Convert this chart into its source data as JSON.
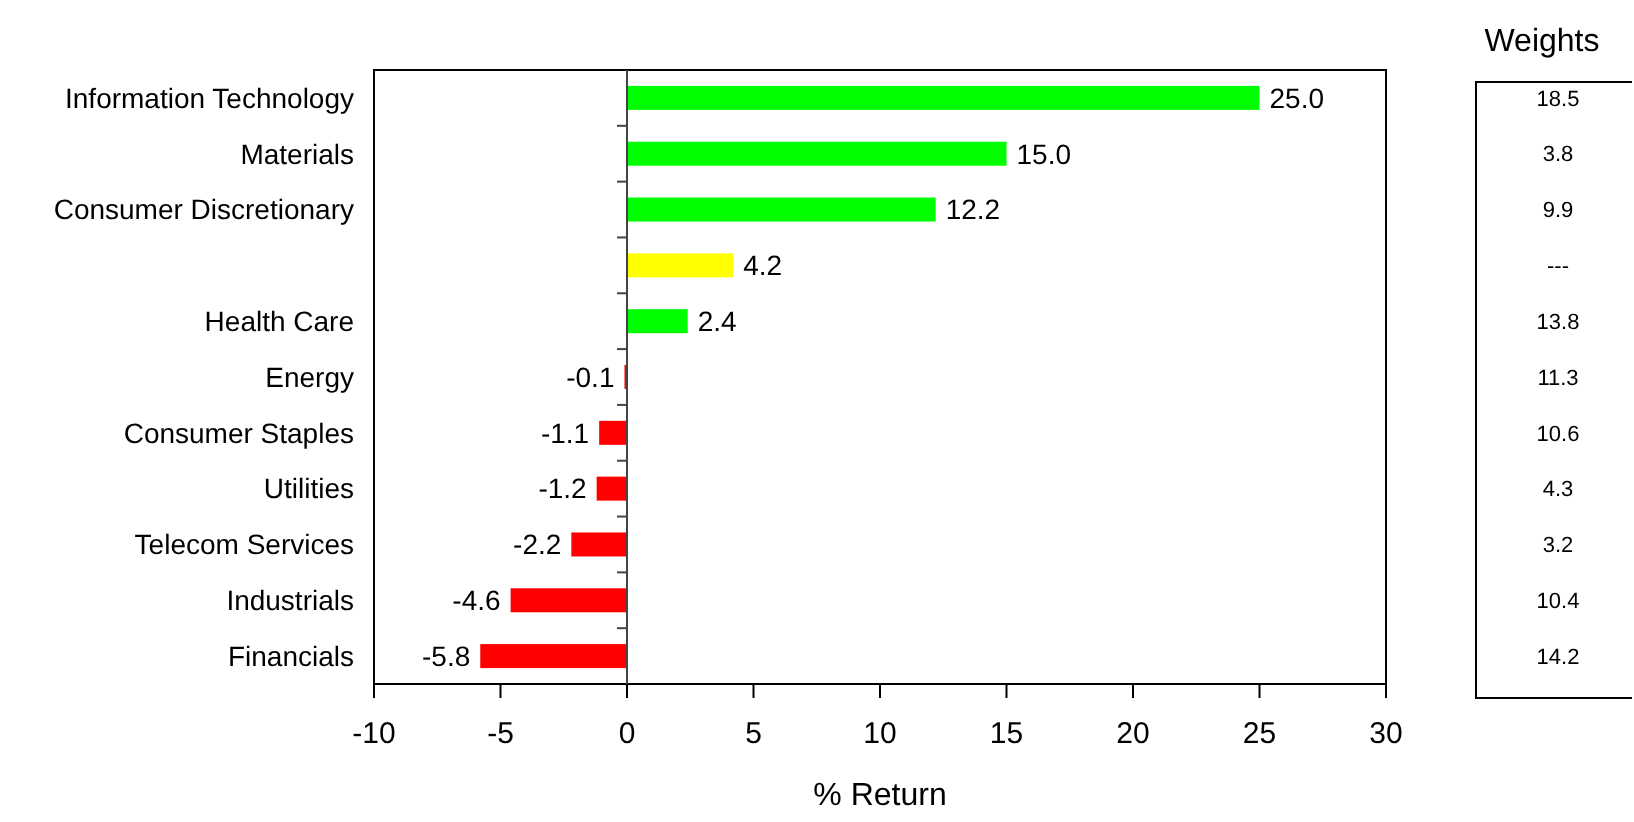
{
  "chart_data": [
    {
      "type": "bar",
      "orientation": "horizontal",
      "categories": [
        "Information Technology",
        "Materials",
        "Consumer Discretionary",
        null,
        "Health Care",
        "Energy",
        "Consumer Staples",
        "Utilities",
        "Telecom Services",
        "Industrials",
        "Financials"
      ],
      "values": [
        25.0,
        15.0,
        12.2,
        4.2,
        2.4,
        -0.1,
        -1.1,
        -1.2,
        -2.2,
        -4.6,
        -5.8
      ],
      "colors": [
        "#00ff00",
        "#00ff00",
        "#00ff00",
        "#ffff00",
        "#00ff00",
        "#ff0000",
        "#ff0000",
        "#ff0000",
        "#ff0000",
        "#ff0000",
        "#ff0000"
      ],
      "value_labels": [
        "25.0",
        "15.0",
        "12.2",
        "4.2",
        "2.4",
        "-0.1",
        "-1.1",
        "-1.2",
        "-2.2",
        "-4.6",
        "-5.8"
      ],
      "xlabel": "% Return",
      "xlim": [
        -10,
        30
      ],
      "xticks": [
        -10,
        -5,
        0,
        5,
        10,
        15,
        20,
        25,
        30
      ]
    },
    {
      "type": "other",
      "title": "Weights",
      "annotations": [
        "18.5",
        "3.8",
        "9.9",
        "---",
        "13.8",
        "11.3",
        "10.6",
        "4.3",
        "3.2",
        "10.4",
        "14.2"
      ]
    }
  ]
}
